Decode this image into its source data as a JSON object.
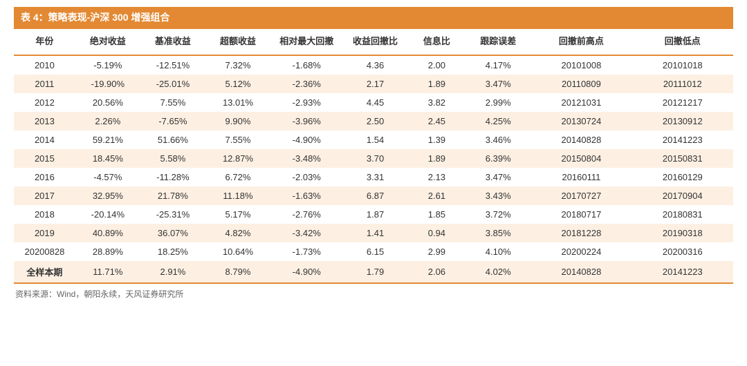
{
  "title": "表 4：策略表现-沪深 300 增强组合",
  "columns": [
    "年份",
    "绝对收益",
    "基准收益",
    "超额收益",
    "相对最大回撤",
    "收益回撤比",
    "信息比",
    "跟踪误差",
    "回撤前高点",
    "回撤低点"
  ],
  "rows": [
    [
      "2010",
      "-5.19%",
      "-12.51%",
      "7.32%",
      "-1.68%",
      "4.36",
      "2.00",
      "4.17%",
      "20101008",
      "20101018"
    ],
    [
      "2011",
      "-19.90%",
      "-25.01%",
      "5.12%",
      "-2.36%",
      "2.17",
      "1.89",
      "3.47%",
      "20110809",
      "20111012"
    ],
    [
      "2012",
      "20.56%",
      "7.55%",
      "13.01%",
      "-2.93%",
      "4.45",
      "3.82",
      "2.99%",
      "20121031",
      "20121217"
    ],
    [
      "2013",
      "2.26%",
      "-7.65%",
      "9.90%",
      "-3.96%",
      "2.50",
      "2.45",
      "4.25%",
      "20130724",
      "20130912"
    ],
    [
      "2014",
      "59.21%",
      "51.66%",
      "7.55%",
      "-4.90%",
      "1.54",
      "1.39",
      "3.46%",
      "20140828",
      "20141223"
    ],
    [
      "2015",
      "18.45%",
      "5.58%",
      "12.87%",
      "-3.48%",
      "3.70",
      "1.89",
      "6.39%",
      "20150804",
      "20150831"
    ],
    [
      "2016",
      "-4.57%",
      "-11.28%",
      "6.72%",
      "-2.03%",
      "3.31",
      "2.13",
      "3.47%",
      "20160111",
      "20160129"
    ],
    [
      "2017",
      "32.95%",
      "21.78%",
      "11.18%",
      "-1.63%",
      "6.87",
      "2.61",
      "3.43%",
      "20170727",
      "20170904"
    ],
    [
      "2018",
      "-20.14%",
      "-25.31%",
      "5.17%",
      "-2.76%",
      "1.87",
      "1.85",
      "3.72%",
      "20180717",
      "20180831"
    ],
    [
      "2019",
      "40.89%",
      "36.07%",
      "4.82%",
      "-3.42%",
      "1.41",
      "0.94",
      "3.85%",
      "20181228",
      "20190318"
    ],
    [
      "20200828",
      "28.89%",
      "18.25%",
      "10.64%",
      "-1.73%",
      "6.15",
      "2.99",
      "4.10%",
      "20200224",
      "20200316"
    ],
    [
      "全样本期",
      "11.71%",
      "2.91%",
      "8.79%",
      "-4.90%",
      "1.79",
      "2.06",
      "4.02%",
      "20140828",
      "20141223"
    ]
  ],
  "stripe_rows": [
    1,
    3,
    5,
    7,
    9,
    11
  ],
  "summary_row": 11,
  "source": "资料来源：Wind，朝阳永续，天风证券研究所",
  "colors": {
    "accent": "#e38933",
    "stripe": "#fdf0e3",
    "text": "#333333",
    "source_text": "#666666",
    "background": "#ffffff"
  },
  "col_classes": [
    "col-year",
    "col-abs",
    "col-bench",
    "col-excess",
    "col-maxdd",
    "col-retdd",
    "col-info",
    "col-track",
    "col-high",
    "col-low"
  ]
}
